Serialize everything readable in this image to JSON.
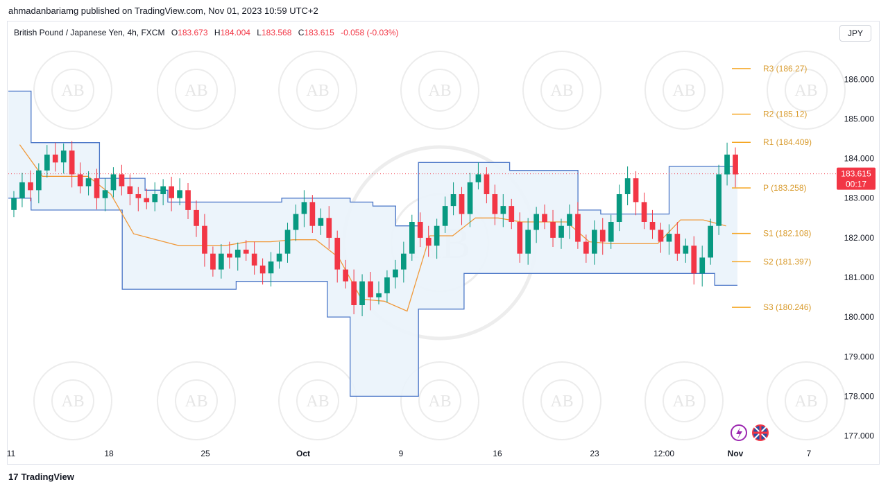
{
  "header": {
    "published": "ahmadanbariamg published on TradingView.com, Nov 01, 2023 10:59 UTC+2"
  },
  "legend": {
    "symbol": "British Pound / Japanese Yen, 4h, FXCM",
    "open_label": "O",
    "open": "183.673",
    "high_label": "H",
    "high": "184.004",
    "low_label": "L",
    "low": "183.568",
    "close_label": "C",
    "close": "183.615",
    "change": "-0.058 (-0.03%)"
  },
  "currency_button": "JPY",
  "price_tag": {
    "price": "183.615",
    "countdown": "00:17"
  },
  "footer": {
    "brand": "TradingView"
  },
  "colors": {
    "up": "#089981",
    "down": "#f23645",
    "channel": "#4a76c7",
    "channel_fill": "#eaf3fb",
    "midline": "#f0993a",
    "pivot": "#f5a623",
    "price_line": "#f23645"
  },
  "chart_data": {
    "type": "candlestick",
    "x_ticks": [
      "11",
      "18",
      "25",
      "Oct",
      "9",
      "16",
      "23",
      "12:00",
      "Nov",
      "7"
    ],
    "y_ticks": [
      "186.000",
      "185.000",
      "184.000",
      "183.000",
      "182.000",
      "181.000",
      "180.000",
      "179.000",
      "178.000",
      "177.000"
    ],
    "ylim": [
      176.8,
      186.95
    ],
    "last_price": 183.615,
    "pivot_levels": [
      {
        "name": "R3",
        "value": 186.27,
        "label": "R3 (186.27)"
      },
      {
        "name": "R2",
        "value": 185.12,
        "label": "R2 (185.12)"
      },
      {
        "name": "R1",
        "value": 184.409,
        "label": "R1 (184.409)"
      },
      {
        "name": "P",
        "value": 183.258,
        "label": "P (183.258)"
      },
      {
        "name": "S1",
        "value": 182.108,
        "label": "S1 (182.108)"
      },
      {
        "name": "S2",
        "value": 181.397,
        "label": "S2 (181.397)"
      },
      {
        "name": "S3",
        "value": 180.246,
        "label": "S3 (180.246)"
      }
    ],
    "close_path": [
      183.0,
      183.4,
      183.2,
      183.7,
      184.1,
      183.9,
      184.2,
      183.6,
      183.3,
      183.5,
      183.0,
      183.2,
      183.6,
      183.3,
      183.1,
      183.0,
      182.9,
      183.1,
      183.3,
      183.0,
      183.2,
      182.7,
      182.3,
      181.6,
      181.2,
      181.6,
      181.5,
      181.7,
      181.6,
      181.3,
      181.1,
      181.4,
      181.6,
      182.2,
      182.6,
      182.9,
      182.3,
      182.5,
      182.0,
      181.2,
      180.9,
      180.3,
      180.9,
      180.5,
      180.6,
      181.0,
      181.2,
      181.6,
      182.4,
      182.0,
      181.8,
      182.3,
      182.8,
      183.1,
      182.6,
      183.4,
      183.6,
      183.1,
      182.6,
      182.8,
      182.4,
      181.6,
      182.2,
      182.6,
      182.4,
      182.0,
      182.3,
      182.6,
      181.9,
      181.6,
      182.2,
      181.9,
      182.4,
      183.1,
      183.5,
      182.9,
      182.4,
      182.2,
      181.9,
      182.1,
      181.6,
      181.8,
      181.1,
      181.5,
      182.3,
      183.6,
      184.1,
      183.6
    ],
    "channel_upper": [
      185.7,
      184.4,
      184.4,
      184.4,
      183.5,
      183.5,
      183.2,
      182.9,
      182.9,
      182.9,
      182.9,
      182.9,
      183.0,
      183.0,
      183.0,
      182.9,
      182.8,
      182.3,
      183.9,
      183.9,
      183.9,
      183.9,
      183.7,
      183.7,
      183.7,
      182.7,
      182.6,
      182.6,
      182.6,
      183.8,
      183.8,
      183.8
    ],
    "channel_lower": [
      183.0,
      182.7,
      182.7,
      182.7,
      182.7,
      180.7,
      180.7,
      180.7,
      180.7,
      180.7,
      180.9,
      180.9,
      180.9,
      180.9,
      180.0,
      178.0,
      178.0,
      178.0,
      180.2,
      180.2,
      181.1,
      181.1,
      181.1,
      181.1,
      181.1,
      181.1,
      181.1,
      181.1,
      181.1,
      181.1,
      181.1,
      180.8
    ],
    "watermark": "AB",
    "grid": false
  }
}
